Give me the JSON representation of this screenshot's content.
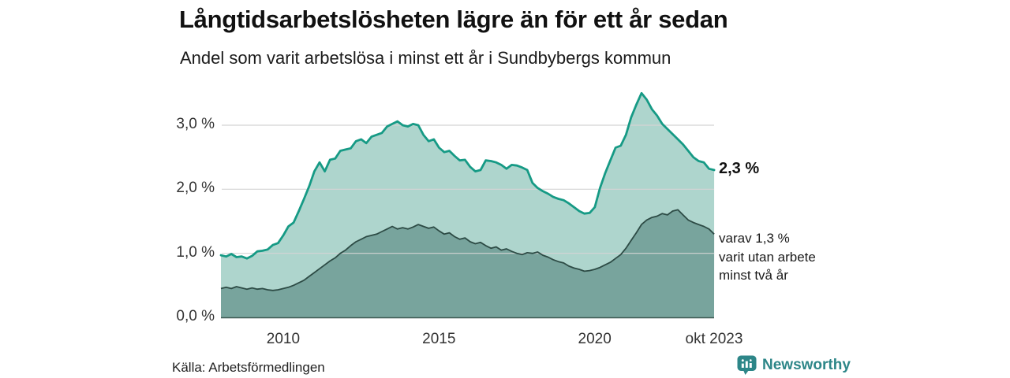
{
  "header": {
    "title": "Långtidsarbetslösheten lägre än för ett år sedan",
    "subtitle": "Andel som varit arbetslösa i minst ett år i Sundbybergs kommun"
  },
  "chart_data": {
    "type": "area",
    "title": "Långtidsarbetslösheten lägre än för ett år sedan",
    "subtitle": "Andel som varit arbetslösa i minst ett år i Sundbybergs kommun",
    "xlabel": "",
    "ylabel": "",
    "xlim": [
      2008,
      2023.8333
    ],
    "ylim": [
      0,
      3.6
    ],
    "grid": true,
    "legend_position": "right-annotations",
    "x_start": 2008,
    "x_step_years": 0.1667,
    "x_tick_positions": [
      2010,
      2015,
      2020,
      2023.8333
    ],
    "x_tick_labels": [
      "2010",
      "2015",
      "2020",
      "okt 2023"
    ],
    "y_tick_values": [
      0,
      1,
      2,
      3
    ],
    "y_tick_labels": [
      "0,0 %",
      "1,0 %",
      "2,0 %",
      "3,0 %"
    ],
    "series": [
      {
        "name": "minst ett år",
        "end_value": 2.3,
        "end_label": "2,3 %",
        "values": [
          0.97,
          0.95,
          0.99,
          0.94,
          0.95,
          0.92,
          0.96,
          1.03,
          1.04,
          1.06,
          1.13,
          1.16,
          1.28,
          1.42,
          1.48,
          1.66,
          1.85,
          2.05,
          2.28,
          2.42,
          2.28,
          2.46,
          2.48,
          2.6,
          2.62,
          2.64,
          2.75,
          2.78,
          2.72,
          2.82,
          2.85,
          2.88,
          2.98,
          3.02,
          3.06,
          3.0,
          2.98,
          3.02,
          3.0,
          2.85,
          2.75,
          2.78,
          2.65,
          2.58,
          2.6,
          2.52,
          2.45,
          2.46,
          2.35,
          2.28,
          2.3,
          2.45,
          2.44,
          2.42,
          2.38,
          2.32,
          2.38,
          2.37,
          2.34,
          2.3,
          2.1,
          2.02,
          1.97,
          1.93,
          1.88,
          1.85,
          1.83,
          1.78,
          1.72,
          1.66,
          1.62,
          1.63,
          1.72,
          2.02,
          2.25,
          2.45,
          2.65,
          2.68,
          2.85,
          3.12,
          3.32,
          3.5,
          3.4,
          3.25,
          3.15,
          3.02,
          2.94,
          2.86,
          2.78,
          2.7,
          2.6,
          2.5,
          2.44,
          2.42,
          2.32,
          2.3
        ]
      },
      {
        "name": "minst två år",
        "end_value": 1.3,
        "end_label": "varav 1,3 % varit utan arbete minst två år",
        "values": [
          0.45,
          0.47,
          0.45,
          0.48,
          0.46,
          0.44,
          0.46,
          0.44,
          0.45,
          0.43,
          0.42,
          0.43,
          0.45,
          0.47,
          0.5,
          0.54,
          0.58,
          0.64,
          0.7,
          0.76,
          0.82,
          0.88,
          0.93,
          1.0,
          1.05,
          1.12,
          1.18,
          1.22,
          1.26,
          1.28,
          1.3,
          1.34,
          1.38,
          1.42,
          1.38,
          1.4,
          1.38,
          1.41,
          1.45,
          1.42,
          1.39,
          1.41,
          1.35,
          1.3,
          1.32,
          1.26,
          1.22,
          1.24,
          1.18,
          1.15,
          1.17,
          1.12,
          1.08,
          1.1,
          1.05,
          1.07,
          1.03,
          1.0,
          0.98,
          1.01,
          1.0,
          1.02,
          0.97,
          0.94,
          0.9,
          0.87,
          0.85,
          0.8,
          0.77,
          0.75,
          0.72,
          0.73,
          0.75,
          0.78,
          0.82,
          0.86,
          0.92,
          0.98,
          1.08,
          1.2,
          1.32,
          1.45,
          1.52,
          1.56,
          1.58,
          1.62,
          1.6,
          1.66,
          1.68,
          1.6,
          1.52,
          1.48,
          1.45,
          1.42,
          1.38,
          1.3
        ]
      }
    ]
  },
  "annotations": {
    "total_value": "2,3 %",
    "subset_line1": "varav 1,3 %",
    "subset_line2": "varit utan arbete",
    "subset_line3": "minst två år"
  },
  "footer": {
    "source": "Källa: Arbetsförmedlingen",
    "brand": "Newsworthy"
  },
  "colors": {
    "accent_line": "#169a85",
    "accent_fill": "#aed5cd",
    "dark_line": "#2d4b45",
    "dark_fill": "#78a49d",
    "grid": "#d4d4d4",
    "baseline": "#3d5952",
    "brand": "#2d8688"
  }
}
